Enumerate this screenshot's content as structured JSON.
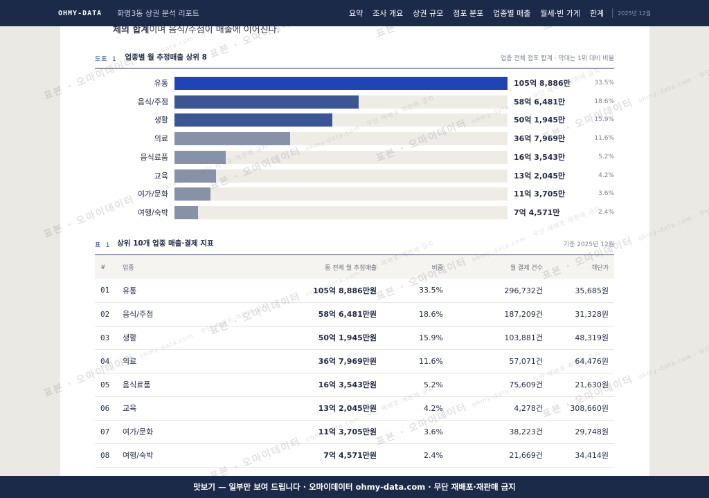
{
  "header": {
    "brand": "OHMY-DATA",
    "doc_title": "화명3동 상권 분석 리포트",
    "nav": [
      "요약",
      "조사 개요",
      "상권 규모",
      "점포 분포",
      "업종별 매출",
      "월세·빈 가게",
      "한계"
    ],
    "date": "2025년 12월"
  },
  "cut_text": {
    "bold": "체의 합계",
    "rest": "이며 음식/주점이 매출에 이어진다."
  },
  "figure": {
    "tag": "도표 1",
    "title": "업종별 월 추정매출 상위 8",
    "note": "업종 전체 점포 합계 · 막대는 1위 대비 비율"
  },
  "chart_data": {
    "type": "bar",
    "orientation": "horizontal",
    "title": "업종별 월 추정매출 상위 8",
    "categories": [
      "유통",
      "음식/주점",
      "생활",
      "의료",
      "음식료품",
      "교육",
      "여가/문화",
      "여행/숙박"
    ],
    "values": [
      1058886,
      586481,
      501945,
      367969,
      163543,
      132045,
      113705,
      74571
    ],
    "value_labels": [
      "105억 8,886만",
      "58억 6,481만",
      "50억 1,945만",
      "36억 7,969만",
      "16억 3,543만",
      "13억 2,045만",
      "11억 3,705만",
      "7억 4,571만"
    ],
    "shares": [
      "33.5%",
      "18.6%",
      "15.9%",
      "11.6%",
      "5.2%",
      "4.2%",
      "3.6%",
      "2.4%"
    ],
    "colors": [
      "#1f44b3",
      "#3c5595",
      "#3c5595",
      "#8791a8",
      "#8791a8",
      "#8791a8",
      "#8791a8",
      "#8791a8"
    ],
    "xlim": [
      0,
      1058886
    ]
  },
  "table": {
    "tag": "표 1",
    "title": "상위 10개 업종 매출·결제 지표",
    "note": "기준 2025년 12월",
    "columns": [
      "#",
      "업종",
      "동 전체 월 추정매출",
      "비중",
      "월 결제 건수",
      "객단가"
    ],
    "rows": [
      [
        "01",
        "유통",
        "105억 8,886만원",
        "33.5%",
        "296,732건",
        "35,685원"
      ],
      [
        "02",
        "음식/주점",
        "58억 6,481만원",
        "18.6%",
        "187,209건",
        "31,328원"
      ],
      [
        "03",
        "생활",
        "50억 1,945만원",
        "15.9%",
        "103,881건",
        "48,319원"
      ],
      [
        "04",
        "의료",
        "36억 7,969만원",
        "11.6%",
        "57,071건",
        "64,476원"
      ],
      [
        "05",
        "음식료품",
        "16억 3,543만원",
        "5.2%",
        "75,609건",
        "21,630원"
      ],
      [
        "06",
        "교육",
        "13억 2,045만원",
        "4.2%",
        "4,278건",
        "308,660원"
      ],
      [
        "07",
        "여가/문화",
        "11억 3,705만원",
        "3.6%",
        "38,223건",
        "29,748원"
      ],
      [
        "08",
        "여행/숙박",
        "7억 4,571만원",
        "2.4%",
        "21,669건",
        "34,414원"
      ]
    ]
  },
  "watermark": {
    "text": "표본 · 오마이데이터",
    "sub": "ohmy-data.com · 무단 재배포·재판매 금지"
  },
  "footer": "맛보기 — 일부만 보여 드립니다 · 오마이데이터 ohmy-data.com · 무단 재배포·재판매 금지"
}
